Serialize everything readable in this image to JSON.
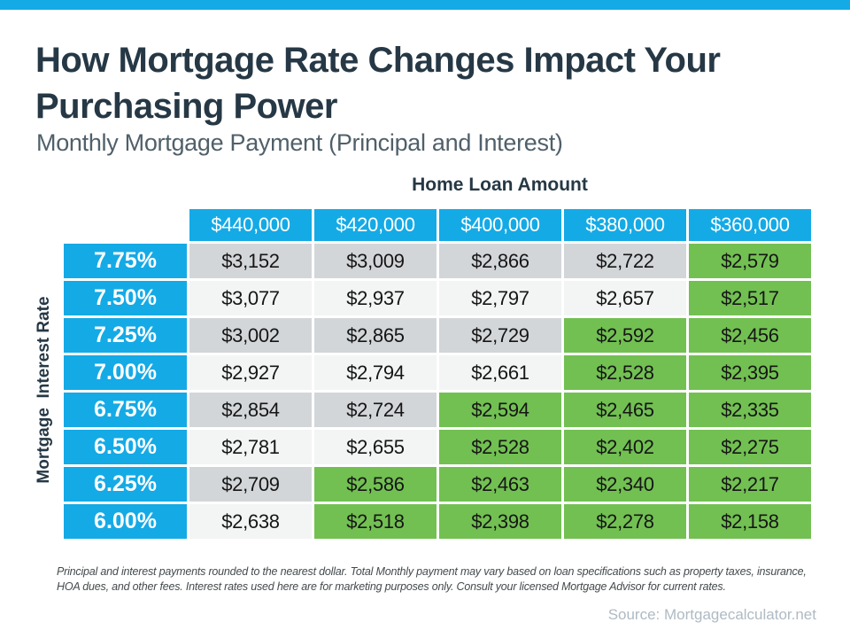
{
  "header": {
    "title_line1": "How Mortgage Rate Changes Impact Your",
    "title_line2": "Purchasing Power",
    "subtitle": "Monthly Mortgage Payment (Principal and Interest)"
  },
  "table": {
    "columns_label": "Home Loan Amount",
    "rows_label": "Mortgage  Interest Rate",
    "columns": [
      "$440,000",
      "$420,000",
      "$400,000",
      "$380,000",
      "$360,000"
    ],
    "rows": [
      {
        "rate": "7.75%",
        "values": [
          "$3,152",
          "$3,009",
          "$2,866",
          "$2,722",
          "$2,579"
        ],
        "green_from": 4
      },
      {
        "rate": "7.50%",
        "values": [
          "$3,077",
          "$2,937",
          "$2,797",
          "$2,657",
          "$2,517"
        ],
        "green_from": 4
      },
      {
        "rate": "7.25%",
        "values": [
          "$3,002",
          "$2,865",
          "$2,729",
          "$2,592",
          "$2,456"
        ],
        "green_from": 3
      },
      {
        "rate": "7.00%",
        "values": [
          "$2,927",
          "$2,794",
          "$2,661",
          "$2,528",
          "$2,395"
        ],
        "green_from": 3
      },
      {
        "rate": "6.75%",
        "values": [
          "$2,854",
          "$2,724",
          "$2,594",
          "$2,465",
          "$2,335"
        ],
        "green_from": 2
      },
      {
        "rate": "6.50%",
        "values": [
          "$2,781",
          "$2,655",
          "$2,528",
          "$2,402",
          "$2,275"
        ],
        "green_from": 2
      },
      {
        "rate": "6.25%",
        "values": [
          "$2,709",
          "$2,586",
          "$2,463",
          "$2,340",
          "$2,217"
        ],
        "green_from": 1
      },
      {
        "rate": "6.00%",
        "values": [
          "$2,638",
          "$2,518",
          "$2,398",
          "$2,278",
          "$2,158"
        ],
        "green_from": 1
      }
    ]
  },
  "footer": {
    "note_line1": "Principal and interest payments rounded to the nearest dollar. Total Monthly payment may vary based on loan specifications such as property taxes,  insurance,",
    "note_line2": "HOA dues, and other fees. Interest rates used here are for marketing purposes only. Consult your licensed Mortgage Advisor for current rates.",
    "source": "Source: Mortgagecalculator.net"
  },
  "colors": {
    "accent_blue": "#14AAE6",
    "highlight_green": "#72C052",
    "row_gray": "#D3D6D9",
    "row_light": "#F3F4F4",
    "title_text": "#263845",
    "subtitle_text": "#50606A",
    "source_text": "#AFBAC3"
  },
  "chart_data": {
    "type": "table",
    "title": "How Mortgage Rate Changes Impact Your Purchasing Power",
    "subtitle": "Monthly Mortgage Payment (Principal and Interest)",
    "column_axis_label": "Home Loan Amount",
    "row_axis_label": "Mortgage Interest Rate",
    "columns": [
      "$440,000",
      "$420,000",
      "$400,000",
      "$380,000",
      "$360,000"
    ],
    "rows": [
      "7.75%",
      "7.50%",
      "7.25%",
      "7.00%",
      "6.75%",
      "6.50%",
      "6.25%",
      "6.00%"
    ],
    "values": [
      [
        3152,
        3009,
        2866,
        2722,
        2579
      ],
      [
        3077,
        2937,
        2797,
        2657,
        2517
      ],
      [
        3002,
        2865,
        2729,
        2592,
        2456
      ],
      [
        2927,
        2794,
        2661,
        2528,
        2395
      ],
      [
        2854,
        2724,
        2594,
        2465,
        2335
      ],
      [
        2781,
        2655,
        2528,
        2402,
        2275
      ],
      [
        2709,
        2586,
        2463,
        2340,
        2217
      ],
      [
        2638,
        2518,
        2398,
        2278,
        2158
      ]
    ],
    "green_highlight_rule": "cells with monthly payment at or below $2,600 are highlighted green"
  }
}
